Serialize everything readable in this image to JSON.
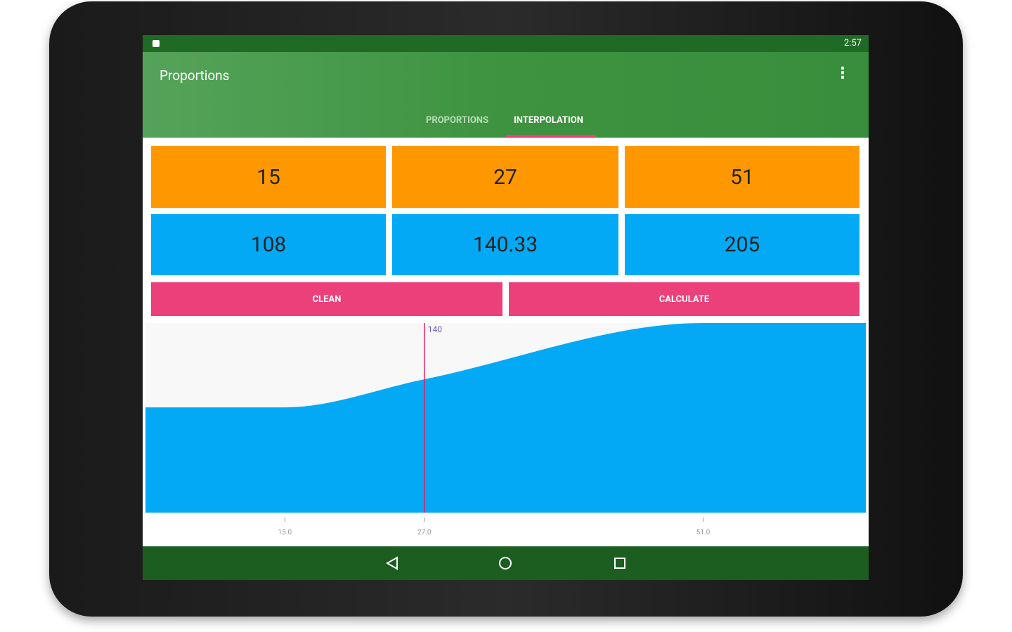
{
  "status_bar": {
    "time": "2:57"
  },
  "app_bar": {
    "title": "Proportions"
  },
  "tabs": [
    "PROPORTIONS",
    "INTERPOLATION"
  ],
  "inputs": {
    "x": [
      "15",
      "27",
      "51"
    ],
    "y": [
      "108",
      "140.33",
      "205"
    ]
  },
  "buttons": [
    "CLEAN",
    "CALCULATE"
  ],
  "chart_data": {
    "type": "area",
    "x": [
      15,
      27,
      51
    ],
    "values": [
      108,
      140.33,
      205
    ],
    "color": "#03a9f4",
    "xlim": [
      3,
      65
    ],
    "ylim": [
      -13,
      205
    ],
    "xticks": [
      {
        "value": 15,
        "label": "15.0"
      },
      {
        "value": 27,
        "label": "27.0"
      },
      {
        "value": 51,
        "label": "51.0"
      }
    ],
    "marker": {
      "x": 27,
      "label": "140",
      "color": "#e91e63"
    }
  }
}
